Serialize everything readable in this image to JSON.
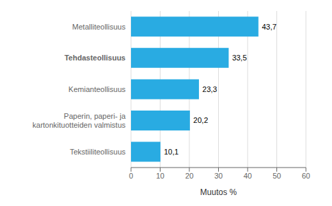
{
  "chart_data": {
    "type": "bar",
    "orientation": "horizontal",
    "categories": [
      "Tekstiiliteollisuus",
      "Paperin, paperi- ja kartonkituotteiden valmistus",
      "Kemianteollisuus",
      "Tehdasteollisuus",
      "Metalliteollisuus"
    ],
    "values": [
      10.1,
      20.2,
      23.3,
      33.5,
      43.7
    ],
    "value_labels": [
      "10,1",
      "20,2",
      "23,3",
      "33,5",
      "43,7"
    ],
    "data_labels": true,
    "color": "#29ABE2",
    "xlabel": "Muutos %",
    "xlim": [
      0,
      60
    ],
    "xticks": [
      0,
      10,
      20,
      30,
      40,
      50,
      60
    ],
    "grid": true
  }
}
